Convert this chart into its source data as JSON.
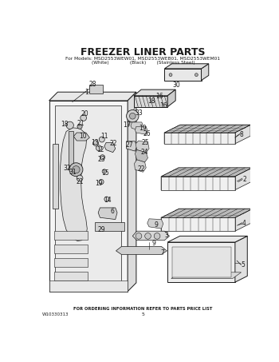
{
  "title": "FREEZER LINER PARTS",
  "subtitle_line1": "For Models: MSD2553WEW01, MSD2553WEB01, MSD2553WEM01",
  "subtitle_line2": "(White)              (Black)       (Stainless Steel)",
  "footer_text": "FOR ORDERING INFORMATION REFER TO PARTS PRICE LIST",
  "footer_left": "W10330313",
  "footer_page": "5",
  "bg_color": "#ffffff",
  "line_color": "#1a1a1a",
  "gray_light": "#e8e8e8",
  "gray_mid": "#d0d0d0",
  "gray_dark": "#b0b0b0"
}
